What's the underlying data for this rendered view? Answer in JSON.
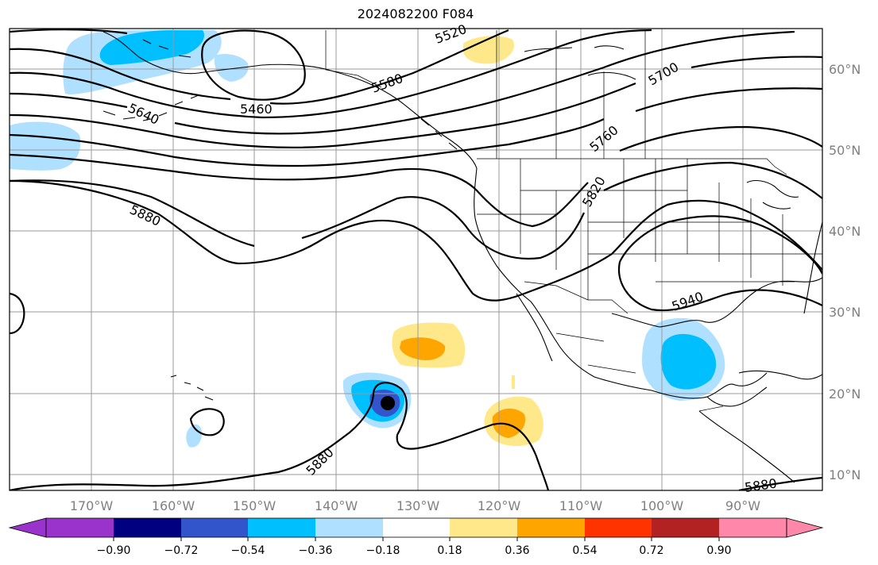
{
  "title": "2024082200 F084",
  "axes": {
    "lon_labels": [
      "170°W",
      "160°W",
      "150°W",
      "140°W",
      "130°W",
      "120°W",
      "110°W",
      "100°W",
      "90°W"
    ],
    "lat_labels": [
      "60°N",
      "50°N",
      "40°N",
      "30°N",
      "20°N",
      "10°N"
    ],
    "label_color": "#808080"
  },
  "colorbar": {
    "tick_labels": [
      "−0.90",
      "−0.72",
      "−0.54",
      "−0.36",
      "−0.18",
      "0.18",
      "0.36",
      "0.54",
      "0.72",
      "0.90"
    ],
    "colors": [
      "#9933cc",
      "#000080",
      "#3355cc",
      "#00bfff",
      "#b0e0ff",
      "#ffffff",
      "#ffe88a",
      "#ffa500",
      "#ff3300",
      "#b22222",
      "#ff88aa"
    ],
    "extend": "both"
  },
  "contours": {
    "labels": [
      "5460",
      "5520",
      "5580",
      "5640",
      "5700",
      "5760",
      "5820",
      "5880",
      "5880",
      "5880",
      "5940"
    ]
  },
  "shading_colors": {
    "neg_light": "#b0e0ff",
    "neg_mid": "#00bfff",
    "neg_dark": "#3355cc",
    "pos_light": "#ffe88a",
    "pos_mid": "#ffa500"
  },
  "marker": {
    "name": "storm center",
    "color": "#000000"
  }
}
